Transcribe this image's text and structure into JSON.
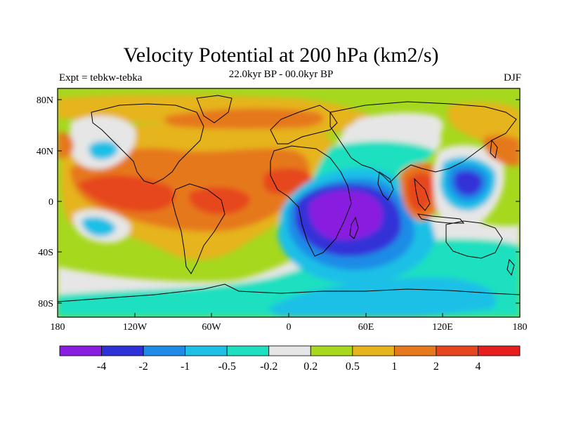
{
  "title": "Velocity Potential at 200 hPa (km2/s)",
  "subtitle": "22.0kyr BP - 00.0kyr BP",
  "left_label": "Expt = tebkw-tebka",
  "right_label": "DJF",
  "lat_ticks": [
    "80N",
    "40N",
    "0",
    "40S",
    "80S"
  ],
  "lon_ticks": [
    "180",
    "120W",
    "60W",
    "0",
    "60E",
    "120E",
    "180"
  ],
  "colorbar": {
    "labels": [
      "-4",
      "-2",
      "-1",
      "-0.5",
      "-0.2",
      "0.2",
      "0.5",
      "1",
      "2",
      "4"
    ],
    "colors": [
      "#8a1ee0",
      "#3030d8",
      "#1e8ce6",
      "#1ec0e6",
      "#1ee0c0",
      "#e6e6e6",
      "#a6d81e",
      "#e6b41e",
      "#e6781e",
      "#e6461e",
      "#e61e1e"
    ]
  },
  "fields": {
    "background": "#a6d81e",
    "strong_pos": "#e6461e",
    "mid_pos": "#e6781e",
    "weak_pos": "#e6b41e",
    "neutral": "#e6e6e6",
    "weak_neg": "#1ee0c0",
    "mid_neg": "#1ec0e6",
    "strong_neg": "#1e8ce6",
    "very_neg": "#3030d8",
    "extreme_neg": "#8a1ee0"
  }
}
